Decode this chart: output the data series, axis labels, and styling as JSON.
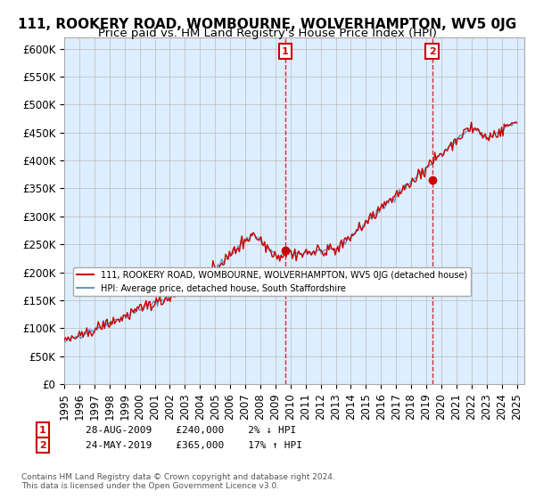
{
  "title": "111, ROOKERY ROAD, WOMBOURNE, WOLVERHAMPTON, WV5 0JG",
  "subtitle": "Price paid vs. HM Land Registry's House Price Index (HPI)",
  "ylabel_ticks": [
    "£0",
    "£50K",
    "£100K",
    "£150K",
    "£200K",
    "£250K",
    "£300K",
    "£350K",
    "£400K",
    "£450K",
    "£500K",
    "£550K",
    "£600K"
  ],
  "ytick_values": [
    0,
    50000,
    100000,
    150000,
    200000,
    250000,
    300000,
    350000,
    400000,
    450000,
    500000,
    550000,
    600000
  ],
  "ylim": [
    0,
    620000
  ],
  "xlim_start": 1995.0,
  "xlim_end": 2025.5,
  "sale1_date": 2009.66,
  "sale1_price": 240000,
  "sale1_label": "1",
  "sale1_note": "28-AUG-2009    £240,000    2% ↓ HPI",
  "sale2_date": 2019.39,
  "sale2_price": 365000,
  "sale2_label": "2",
  "sale2_note": "24-MAY-2019    £365,000    17% ↑ HPI",
  "legend_line1": "111, ROOKERY ROAD, WOMBOURNE, WOLVERHAMPTON, WV5 0JG (detached house)",
  "legend_line2": "HPI: Average price, detached house, South Staffordshire",
  "footer": "Contains HM Land Registry data © Crown copyright and database right 2024.\nThis data is licensed under the Open Government Licence v3.0.",
  "line_color_red": "#cc0000",
  "line_color_blue": "#6699cc",
  "marker_color_red": "#cc0000",
  "vline_color": "#cc0000",
  "box_color": "#cc0000",
  "bg_color": "#ddeeff",
  "grid_color": "#bbbbbb",
  "title_fontsize": 11,
  "subtitle_fontsize": 9.5,
  "tick_fontsize": 8.5
}
